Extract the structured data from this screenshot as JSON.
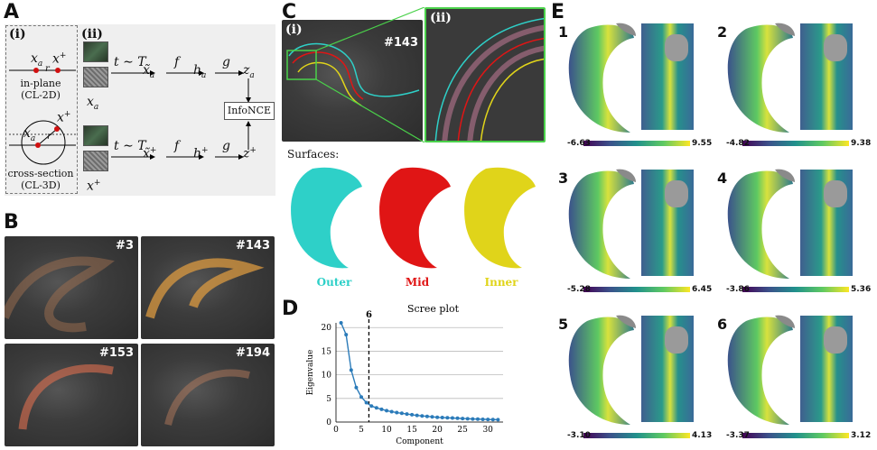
{
  "panels": {
    "A": {
      "label": "A",
      "i_label": "(i)",
      "ii_label": "(ii)",
      "in_plane": "in-plane",
      "in_plane_sub": "(CL-2D)",
      "cross_section": "cross-section",
      "cross_section_sub": "(CL-3D)",
      "xa": "x",
      "xa_sub": "a",
      "xplus": "x",
      "xplus_sup": "+",
      "r": "r",
      "t_sample_top": "t ∼ T",
      "t_sample_bot": "t ∼ T",
      "tilde_xa": "x̃",
      "tilde_xplus": "x̃",
      "f": "f",
      "g": "g",
      "ha": "h",
      "hplus": "h",
      "za": "z",
      "zplus": "z",
      "infonce": "InfoNCE"
    },
    "B": {
      "label": "B",
      "slices": [
        "#3",
        "#143",
        "#153",
        "#194"
      ]
    },
    "C": {
      "label": "C",
      "i_label": "(i)",
      "ii_label": "(ii)",
      "slice": "#143",
      "surfaces_title": "Surfaces:",
      "surfaces": [
        {
          "name": "Outer",
          "color": "#2ed0c8"
        },
        {
          "name": "Mid",
          "color": "#e01515"
        },
        {
          "name": "Inner",
          "color": "#e0d41a"
        }
      ]
    },
    "D": {
      "label": "D",
      "title": "Scree plot",
      "cutoff_label": "6"
    },
    "E": {
      "label": "E",
      "components": [
        {
          "n": "1",
          "min": "-6.63",
          "max": "9.55"
        },
        {
          "n": "2",
          "min": "-4.82",
          "max": "9.38"
        },
        {
          "n": "3",
          "min": "-5.28",
          "max": "6.45"
        },
        {
          "n": "4",
          "min": "-3.86",
          "max": "5.36"
        },
        {
          "n": "5",
          "min": "-3.10",
          "max": "4.13"
        },
        {
          "n": "6",
          "min": "-3.37",
          "max": "3.12"
        }
      ]
    }
  },
  "chart_data": {
    "type": "line",
    "title": "Scree plot",
    "xlabel": "Component",
    "ylabel": "Eigenvalue",
    "xlim": [
      0,
      33
    ],
    "ylim": [
      0,
      21
    ],
    "xticks": [
      0,
      5,
      10,
      15,
      20,
      25,
      30
    ],
    "yticks": [
      0,
      5,
      10,
      15,
      20
    ],
    "cutoff_x": 6.5,
    "x": [
      1,
      2,
      3,
      4,
      5,
      6,
      7,
      8,
      9,
      10,
      11,
      12,
      13,
      14,
      15,
      16,
      17,
      18,
      19,
      20,
      21,
      22,
      23,
      24,
      25,
      26,
      27,
      28,
      29,
      30,
      31,
      32
    ],
    "y": [
      21.0,
      18.5,
      11.0,
      7.3,
      5.3,
      4.1,
      3.4,
      3.0,
      2.7,
      2.4,
      2.2,
      2.0,
      1.85,
      1.7,
      1.55,
      1.4,
      1.3,
      1.2,
      1.1,
      1.0,
      0.95,
      0.9,
      0.85,
      0.8,
      0.75,
      0.7,
      0.65,
      0.62,
      0.58,
      0.55,
      0.52,
      0.5
    ],
    "color": "#2b7bb9",
    "grid": "horizontal"
  }
}
